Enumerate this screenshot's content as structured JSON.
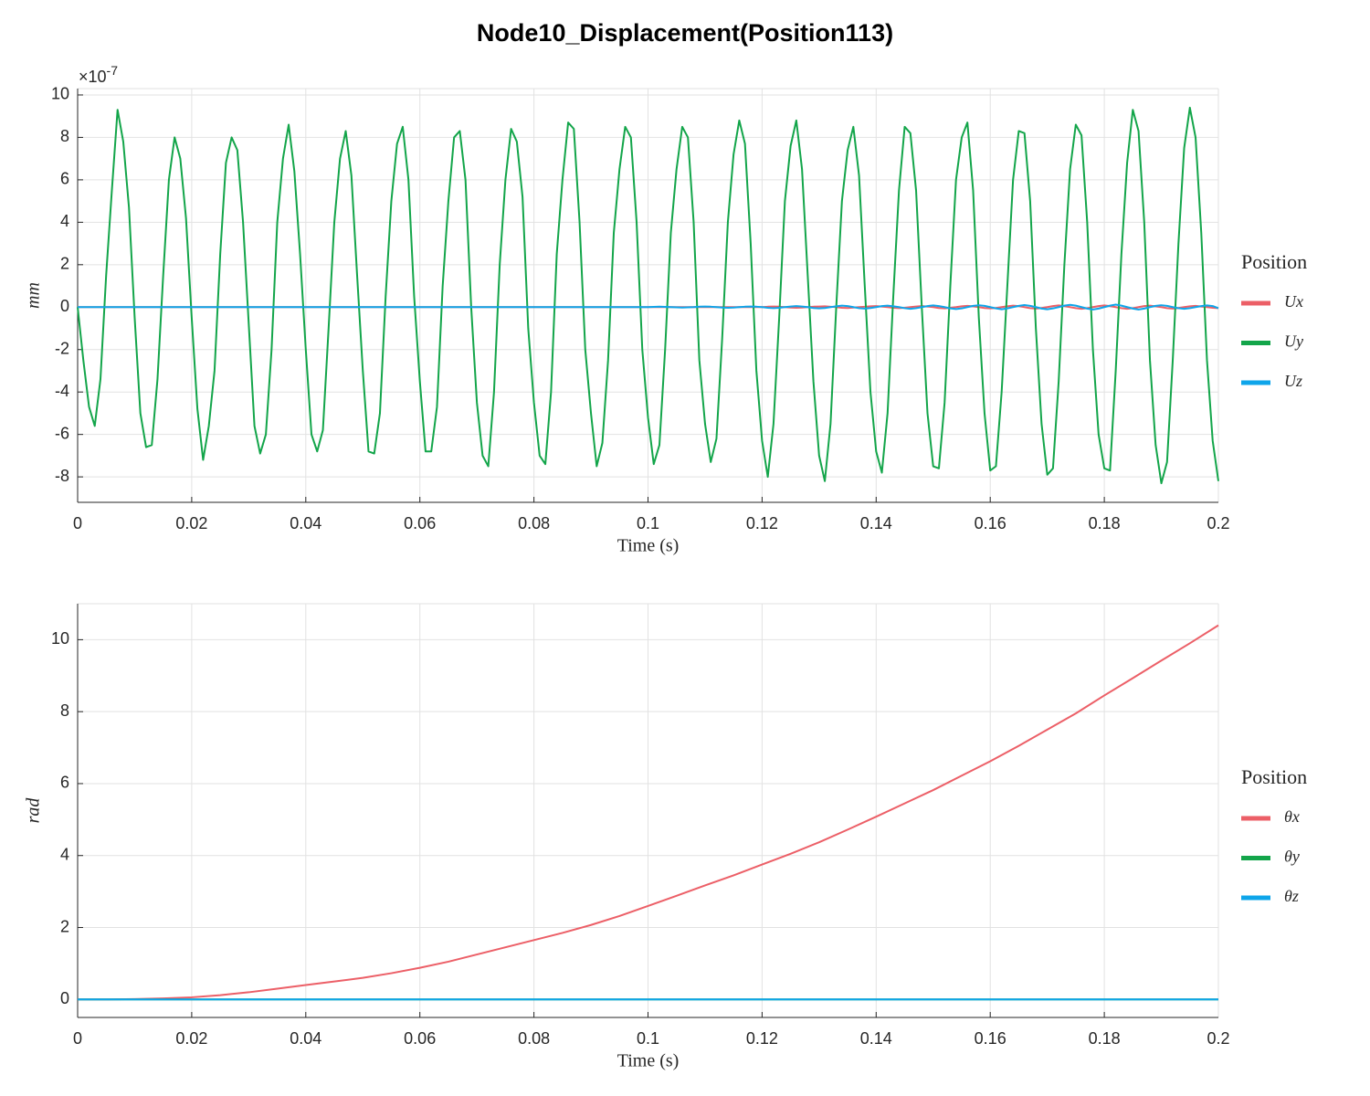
{
  "title": "Node10_Displacement(Position113)",
  "chart_data": [
    {
      "type": "line",
      "xlabel": "Time (s)",
      "ylabel": "mm",
      "y_multiplier": "×10",
      "y_exponent": "-7",
      "legend_title": "Position",
      "legend_position": "right",
      "grid": true,
      "xlim": [
        0,
        0.2
      ],
      "xticks": [
        0,
        0.02,
        0.04,
        0.06,
        0.08,
        0.1,
        0.12,
        0.14,
        0.16,
        0.18,
        0.2
      ],
      "ylim": [
        -9.2,
        10.3
      ],
      "yticks": [
        10,
        8,
        6,
        4,
        2,
        0,
        -2,
        -4,
        -6,
        -8
      ],
      "x": [
        0,
        0.001,
        0.002,
        0.003,
        0.004,
        0.005,
        0.006,
        0.007,
        0.008,
        0.009,
        0.01,
        0.011,
        0.012,
        0.013,
        0.014,
        0.015,
        0.016,
        0.017,
        0.018,
        0.019,
        0.02,
        0.021,
        0.022,
        0.023,
        0.024,
        0.025,
        0.026,
        0.027,
        0.028,
        0.029,
        0.03,
        0.031,
        0.032,
        0.033,
        0.034,
        0.035,
        0.036,
        0.037,
        0.038,
        0.039,
        0.04,
        0.041,
        0.042,
        0.043,
        0.044,
        0.045,
        0.046,
        0.047,
        0.048,
        0.049,
        0.05,
        0.051,
        0.052,
        0.053,
        0.054,
        0.055,
        0.056,
        0.057,
        0.058,
        0.059,
        0.06,
        0.061,
        0.062,
        0.063,
        0.064,
        0.065,
        0.066,
        0.067,
        0.068,
        0.069,
        0.07,
        0.071,
        0.072,
        0.073,
        0.074,
        0.075,
        0.076,
        0.077,
        0.078,
        0.079,
        0.08,
        0.081,
        0.082,
        0.083,
        0.084,
        0.085,
        0.086,
        0.087,
        0.088,
        0.089,
        0.09,
        0.091,
        0.092,
        0.093,
        0.094,
        0.095,
        0.096,
        0.097,
        0.098,
        0.099,
        0.1,
        0.101,
        0.102,
        0.103,
        0.104,
        0.105,
        0.106,
        0.107,
        0.108,
        0.109,
        0.11,
        0.111,
        0.112,
        0.113,
        0.114,
        0.115,
        0.116,
        0.117,
        0.118,
        0.119,
        0.12,
        0.121,
        0.122,
        0.123,
        0.124,
        0.125,
        0.126,
        0.127,
        0.128,
        0.129,
        0.13,
        0.131,
        0.132,
        0.133,
        0.134,
        0.135,
        0.136,
        0.137,
        0.138,
        0.139,
        0.14,
        0.141,
        0.142,
        0.143,
        0.144,
        0.145,
        0.146,
        0.147,
        0.148,
        0.149,
        0.15,
        0.151,
        0.152,
        0.153,
        0.154,
        0.155,
        0.156,
        0.157,
        0.158,
        0.159,
        0.16,
        0.161,
        0.162,
        0.163,
        0.164,
        0.165,
        0.166,
        0.167,
        0.168,
        0.169,
        0.17,
        0.171,
        0.172,
        0.173,
        0.174,
        0.175,
        0.176,
        0.177,
        0.178,
        0.179,
        0.18,
        0.181,
        0.182,
        0.183,
        0.184,
        0.185,
        0.186,
        0.187,
        0.188,
        0.189,
        0.19,
        0.191,
        0.192,
        0.193,
        0.194,
        0.195,
        0.196,
        0.197,
        0.198,
        0.199,
        0.2
      ],
      "series": [
        {
          "name": "Ux",
          "color": "#ec5f67",
          "values": [
            0,
            0,
            0,
            0,
            0,
            0,
            0,
            0,
            0,
            0,
            0,
            0,
            0,
            0,
            0,
            0,
            0,
            0,
            0,
            0,
            0,
            0,
            0,
            0,
            0,
            0,
            0,
            0,
            0,
            0,
            0,
            0,
            0,
            0,
            0,
            0,
            0,
            0,
            0,
            0,
            0,
            0,
            0,
            0,
            0,
            0,
            0,
            0,
            0,
            0,
            0,
            0,
            0,
            0,
            0,
            0,
            0,
            0,
            0,
            0,
            0,
            0,
            0,
            0,
            0,
            0,
            0,
            0,
            0,
            0,
            0,
            0,
            0,
            0,
            0,
            0,
            0,
            0,
            0,
            0,
            0,
            0,
            0,
            0,
            0,
            0,
            0,
            0,
            0,
            0,
            0,
            0,
            0,
            0,
            0,
            0,
            0,
            0,
            0,
            0,
            0,
            0,
            0,
            0,
            0,
            0,
            0,
            0,
            0,
            0,
            0,
            0,
            0,
            0,
            0,
            0,
            0,
            0,
            0,
            0,
            0,
            0.02,
            0.03,
            0.02,
            0,
            -0.02,
            -0.03,
            -0.02,
            0,
            0.02,
            0.03,
            0.04,
            0.02,
            0,
            -0.03,
            -0.04,
            -0.02,
            0,
            0.02,
            0.04,
            0.05,
            0.03,
            0,
            -0.03,
            -0.05,
            -0.03,
            0,
            0.03,
            0.05,
            0.03,
            0,
            -0.04,
            -0.06,
            -0.03,
            0,
            0.04,
            0.06,
            0.04,
            0,
            -0.04,
            -0.06,
            -0.04,
            0,
            0.04,
            0.07,
            0.05,
            0,
            -0.05,
            -0.07,
            -0.04,
            0,
            0.05,
            0.08,
            0.05,
            0,
            -0.05,
            -0.08,
            -0.05,
            0,
            0.05,
            0.08,
            0.05,
            0,
            -0.05,
            -0.08,
            -0.05,
            0,
            0.05,
            0.07,
            0.04,
            0,
            -0.05,
            -0.07,
            -0.04,
            0,
            0.04,
            0.06,
            0.03,
            0,
            -0.03,
            -0.05
          ]
        },
        {
          "name": "Uy",
          "color": "#13a54a",
          "values": [
            0,
            -2.5,
            -4.7,
            -5.6,
            -3.4,
            1.5,
            5.5,
            9.3,
            7.8,
            4.7,
            -0.5,
            -5.0,
            -6.6,
            -6.5,
            -3.4,
            1.5,
            6.0,
            8.0,
            7.0,
            4.2,
            -0.5,
            -4.8,
            -7.2,
            -5.6,
            -3.0,
            2.5,
            6.8,
            8.0,
            7.4,
            4.0,
            -0.8,
            -5.6,
            -6.9,
            -6.0,
            -2.0,
            4.0,
            7.0,
            8.6,
            6.4,
            2.5,
            -2.0,
            -6.0,
            -6.8,
            -5.8,
            -1.0,
            4.0,
            7.0,
            8.3,
            6.2,
            1.5,
            -3.0,
            -6.8,
            -6.9,
            -5.0,
            0.5,
            5.0,
            7.7,
            8.5,
            6.0,
            0.5,
            -3.5,
            -6.8,
            -6.8,
            -4.7,
            1.0,
            5.0,
            8.0,
            8.3,
            6.0,
            0,
            -4.5,
            -7.0,
            -7.5,
            -4.0,
            2.0,
            6.0,
            8.4,
            7.8,
            5.2,
            -1.0,
            -4.5,
            -7.0,
            -7.4,
            -4.0,
            2.5,
            6.0,
            8.7,
            8.4,
            4.0,
            -2.0,
            -5.0,
            -7.5,
            -6.4,
            -2.5,
            3.5,
            6.5,
            8.5,
            8.0,
            4.0,
            -2.0,
            -5.2,
            -7.4,
            -6.5,
            -2.0,
            3.5,
            6.5,
            8.5,
            8.0,
            4.0,
            -2.5,
            -5.5,
            -7.3,
            -6.2,
            -1.5,
            4.0,
            7.2,
            8.8,
            7.7,
            3.0,
            -3.0,
            -6.3,
            -8.0,
            -5.5,
            -0.5,
            5.0,
            7.6,
            8.8,
            6.5,
            1.5,
            -3.5,
            -7.0,
            -8.2,
            -5.5,
            0,
            5.0,
            7.4,
            8.5,
            6.2,
            1.0,
            -4.0,
            -6.8,
            -7.8,
            -5.0,
            0.5,
            5.5,
            8.5,
            8.2,
            5.5,
            0,
            -5.0,
            -7.5,
            -7.6,
            -4.5,
            1.0,
            6.0,
            8.0,
            8.7,
            5.5,
            -0.5,
            -5.0,
            -7.7,
            -7.5,
            -4.0,
            1.0,
            6.0,
            8.3,
            8.2,
            5.0,
            -1.0,
            -5.5,
            -7.9,
            -7.6,
            -3.5,
            2.0,
            6.5,
            8.6,
            8.1,
            4.0,
            -2.0,
            -6.0,
            -7.6,
            -7.7,
            -3.0,
            2.5,
            6.8,
            9.3,
            8.3,
            4.0,
            -2.5,
            -6.5,
            -8.3,
            -7.3,
            -2.5,
            3.0,
            7.5,
            9.4,
            8.0,
            3.5,
            -2.5,
            -6.3,
            -8.2
          ]
        },
        {
          "name": "Uz",
          "color": "#0ea5ea",
          "values": [
            0,
            0,
            0,
            0,
            0,
            0,
            0,
            0,
            0,
            0,
            0,
            0,
            0,
            0,
            0,
            0,
            0,
            0,
            0,
            0,
            0,
            0,
            0,
            0,
            0,
            0,
            0,
            0,
            0,
            0,
            0,
            0,
            0,
            0,
            0,
            0,
            0,
            0,
            0,
            0,
            0,
            0,
            0,
            0,
            0,
            0,
            0,
            0,
            0,
            0,
            0,
            0,
            0,
            0,
            0,
            0,
            0,
            0,
            0,
            0,
            0,
            0,
            0,
            0,
            0,
            0,
            0,
            0,
            0,
            0,
            0,
            0,
            0,
            0,
            0,
            0,
            0,
            0,
            0,
            0,
            0,
            0,
            0,
            0,
            0,
            0,
            0,
            0,
            0,
            0,
            0,
            0,
            0,
            0,
            0,
            0,
            0,
            0,
            0,
            0,
            0,
            0.01,
            0.02,
            0.01,
            0,
            -0.01,
            -0.02,
            -0.01,
            0,
            0.02,
            0.03,
            0.02,
            0,
            -0.02,
            -0.03,
            -0.02,
            0,
            0.02,
            0.03,
            0.02,
            0,
            -0.03,
            -0.05,
            -0.03,
            0,
            0.03,
            0.05,
            0.03,
            0,
            -0.04,
            -0.06,
            -0.04,
            0,
            0.04,
            0.07,
            0.05,
            0,
            -0.05,
            -0.07,
            -0.04,
            0,
            0.05,
            0.07,
            0.04,
            0,
            -0.05,
            -0.08,
            -0.05,
            0,
            0.05,
            0.08,
            0.05,
            0,
            -0.06,
            -0.09,
            -0.06,
            0,
            0.06,
            0.09,
            0.06,
            0,
            -0.06,
            -0.1,
            -0.06,
            0,
            0.06,
            0.1,
            0.06,
            0,
            -0.07,
            -0.1,
            -0.06,
            0,
            0.07,
            0.11,
            0.07,
            0,
            -0.07,
            -0.11,
            -0.07,
            0,
            0.07,
            0.12,
            0.07,
            0,
            -0.07,
            -0.11,
            -0.07,
            0,
            0.06,
            0.09,
            0.06,
            0,
            -0.05,
            -0.08,
            -0.05,
            0,
            0.05,
            0.08,
            0.05,
            -0.05
          ]
        }
      ]
    },
    {
      "type": "line",
      "xlabel": "Time (s)",
      "ylabel": "rad",
      "legend_title": "Position",
      "legend_position": "right",
      "grid": true,
      "xlim": [
        0,
        0.2
      ],
      "xticks": [
        0,
        0.02,
        0.04,
        0.06,
        0.08,
        0.1,
        0.12,
        0.14,
        0.16,
        0.18,
        0.2
      ],
      "ylim": [
        -0.5,
        11
      ],
      "yticks": [
        0,
        2,
        4,
        6,
        8,
        10
      ],
      "x": [
        0,
        0.005,
        0.01,
        0.015,
        0.02,
        0.025,
        0.03,
        0.035,
        0.04,
        0.045,
        0.05,
        0.055,
        0.06,
        0.065,
        0.07,
        0.075,
        0.08,
        0.085,
        0.09,
        0.095,
        0.1,
        0.105,
        0.11,
        0.115,
        0.12,
        0.125,
        0.13,
        0.135,
        0.14,
        0.145,
        0.15,
        0.155,
        0.16,
        0.165,
        0.17,
        0.175,
        0.18,
        0.185,
        0.19,
        0.195,
        0.2
      ],
      "series": [
        {
          "name": "θx",
          "color": "#ec5f67",
          "values": [
            0,
            0,
            0.01,
            0.03,
            0.06,
            0.12,
            0.2,
            0.3,
            0.4,
            0.5,
            0.6,
            0.73,
            0.88,
            1.05,
            1.25,
            1.45,
            1.65,
            1.85,
            2.07,
            2.32,
            2.6,
            2.88,
            3.17,
            3.45,
            3.75,
            4.05,
            4.37,
            4.72,
            5.08,
            5.45,
            5.82,
            6.22,
            6.62,
            7.05,
            7.5,
            7.95,
            8.45,
            8.93,
            9.42,
            9.9,
            10.4
          ]
        },
        {
          "name": "θy",
          "color": "#13a54a",
          "values": [
            0,
            0,
            0,
            0,
            0,
            0,
            0,
            0,
            0,
            0,
            0,
            0,
            0,
            0,
            0,
            0,
            0,
            0,
            0,
            0,
            0,
            0,
            0,
            0,
            0,
            0,
            0,
            0,
            0,
            0,
            0,
            0,
            0,
            0,
            0,
            0,
            0,
            0,
            0,
            0,
            0
          ]
        },
        {
          "name": "θz",
          "color": "#0ea5ea",
          "values": [
            0,
            0,
            0,
            0,
            0,
            0,
            0,
            0,
            0,
            0,
            0,
            0,
            0,
            0,
            0,
            0,
            0,
            0,
            0,
            0,
            0,
            0,
            0,
            0,
            0,
            0,
            0,
            0,
            0,
            0,
            0,
            0,
            0,
            0,
            0,
            0,
            0,
            0,
            0,
            0,
            0
          ]
        }
      ]
    }
  ]
}
